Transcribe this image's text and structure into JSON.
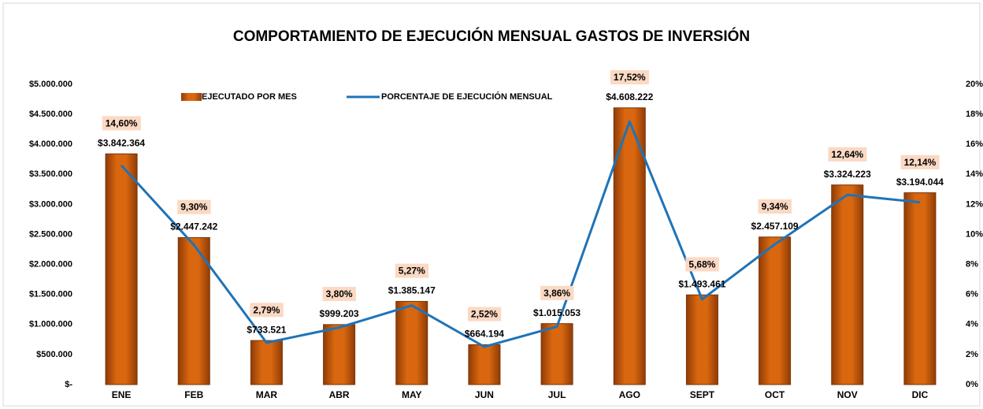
{
  "chart_data": {
    "type": "bar",
    "title": "COMPORTAMIENTO DE EJECUCIÓN MENSUAL GASTOS DE INVERSIÓN",
    "categories": [
      "ENE",
      "FEB",
      "MAR",
      "ABR",
      "MAY",
      "JUN",
      "JUL",
      "AGO",
      "SEPT",
      "OCT",
      "NOV",
      "DIC"
    ],
    "series": [
      {
        "name": "EJECUTADO POR MES",
        "type": "bar",
        "color": "#c55a11",
        "values": [
          3842364,
          2447242,
          733521,
          999203,
          1385147,
          664194,
          1015053,
          4608222,
          1493461,
          2457109,
          3324223,
          3194044
        ],
        "value_labels": [
          "$3.842.364",
          "$2.447.242",
          "$733.521",
          "$999.203",
          "$1.385.147",
          "$664.194",
          "$1.015.053",
          "$4.608.222",
          "$1.493.461",
          "$2.457.109",
          "$3.324.223",
          "$3.194.044"
        ]
      },
      {
        "name": "PORCENTAJE DE EJECUCIÓN MENSUAL",
        "type": "line",
        "axis": "y2",
        "color": "#1f73b7",
        "values": [
          14.6,
          9.3,
          2.79,
          3.8,
          5.27,
          2.52,
          3.86,
          17.52,
          5.68,
          9.34,
          12.64,
          12.14
        ],
        "value_labels": [
          "14,60%",
          "9,30%",
          "2,79%",
          "3,80%",
          "5,27%",
          "2,52%",
          "3,86%",
          "17,52%",
          "5,68%",
          "9,34%",
          "12,64%",
          "12,14%"
        ]
      }
    ],
    "ylim": [
      0,
      5000000
    ],
    "yticks": [
      {
        "value": 0,
        "label": "$-"
      },
      {
        "value": 500000,
        "label": "$500.000"
      },
      {
        "value": 1000000,
        "label": "$1.000.000"
      },
      {
        "value": 1500000,
        "label": "$1.500.000"
      },
      {
        "value": 2000000,
        "label": "$2.000.000"
      },
      {
        "value": 2500000,
        "label": "$2.500.000"
      },
      {
        "value": 3000000,
        "label": "$3.000.000"
      },
      {
        "value": 3500000,
        "label": "$3.500.000"
      },
      {
        "value": 4000000,
        "label": "$4.000.000"
      },
      {
        "value": 4500000,
        "label": "$4.500.000"
      },
      {
        "value": 5000000,
        "label": "$5.000.000"
      }
    ],
    "y2lim": [
      0,
      20
    ],
    "y2ticks": [
      {
        "value": 0,
        "label": "0%"
      },
      {
        "value": 2,
        "label": "2%"
      },
      {
        "value": 4,
        "label": "4%"
      },
      {
        "value": 6,
        "label": "6%"
      },
      {
        "value": 8,
        "label": "8%"
      },
      {
        "value": 10,
        "label": "10%"
      },
      {
        "value": 12,
        "label": "12%"
      },
      {
        "value": 14,
        "label": "14%"
      },
      {
        "value": 16,
        "label": "16%"
      },
      {
        "value": 18,
        "label": "18%"
      },
      {
        "value": 20,
        "label": "20%"
      }
    ],
    "legend": "top",
    "label_background": "#fbd9c3"
  }
}
